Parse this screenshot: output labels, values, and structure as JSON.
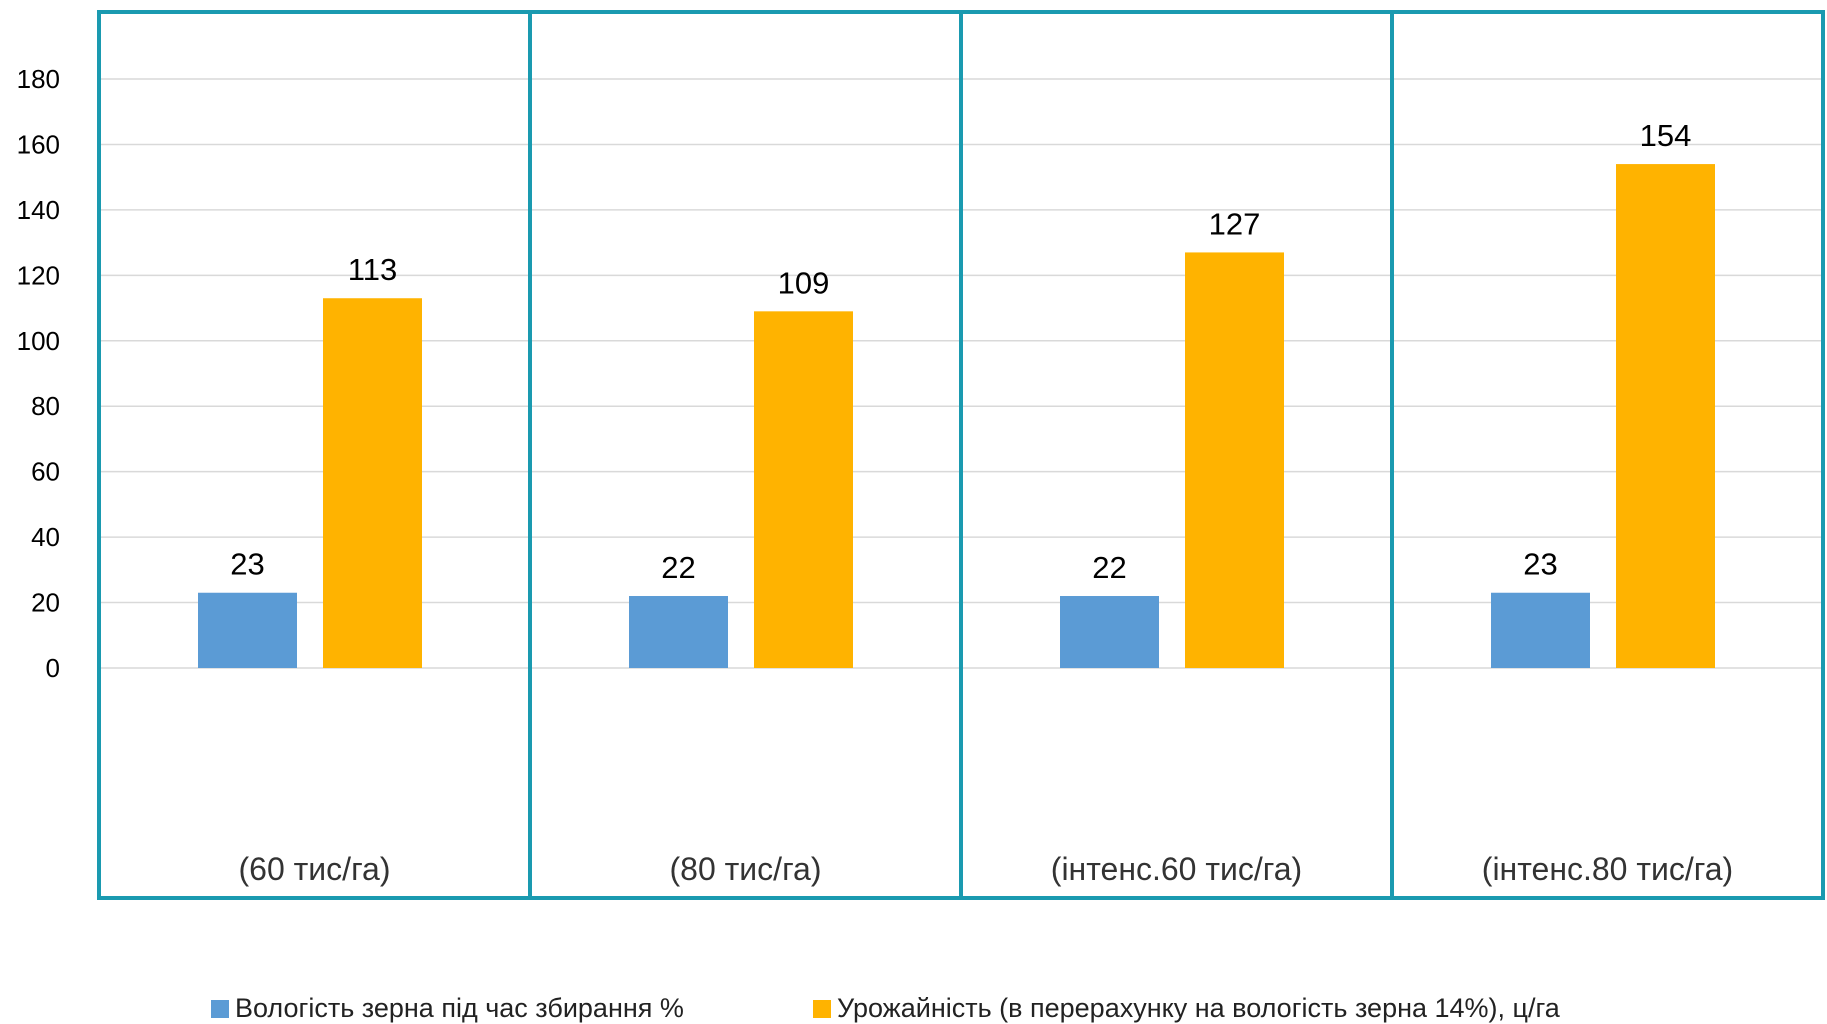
{
  "chart_data": {
    "type": "bar",
    "categories": [
      "(60 тис/га)",
      "(80 тис/га)",
      "(інтенс.60 тис/га)",
      "(інтенс.80 тис/га)"
    ],
    "series": [
      {
        "name": "Вологість зерна під час збирання %",
        "values": [
          23,
          22,
          22,
          23
        ],
        "labels": [
          "23",
          "22",
          "22",
          "23"
        ],
        "color": "#5b9bd5"
      },
      {
        "name": "Урожайність  (в перерахунку на вологість зерна 14%), ц/га",
        "values": [
          113,
          109,
          127,
          154
        ],
        "labels": [
          "113",
          "109",
          "127",
          "154"
        ],
        "color": "#ffb300"
      }
    ],
    "yticks": [
      "0",
      "20",
      "40",
      "60",
      "80",
      "100",
      "120",
      "140",
      "160",
      "180"
    ],
    "ylim": [
      0,
      200
    ],
    "grid": true,
    "legend_position": "bottom",
    "frame_color": "#1a9ab0"
  }
}
